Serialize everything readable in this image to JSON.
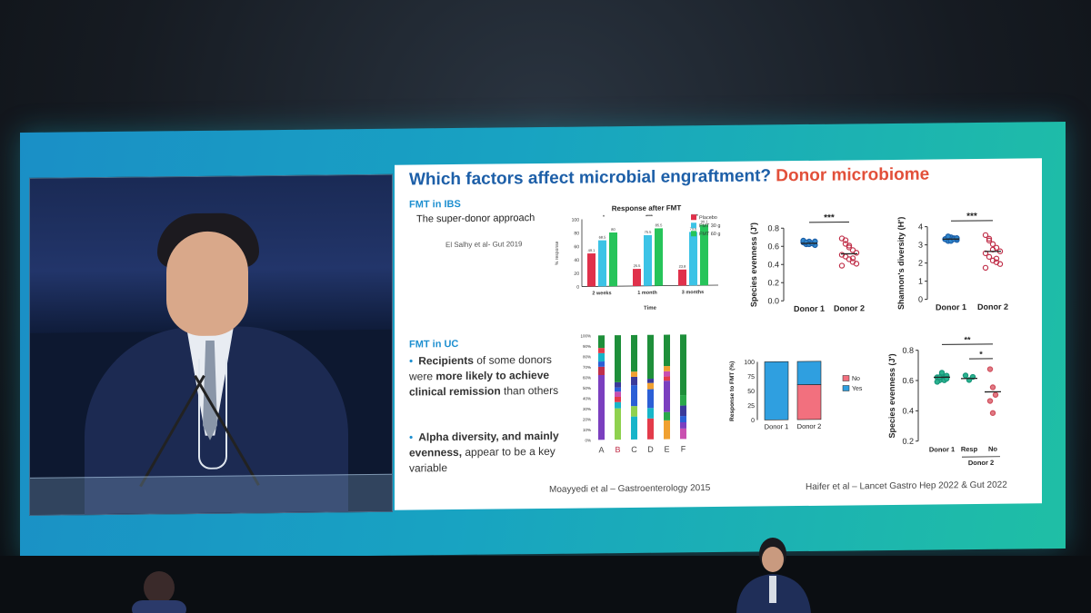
{
  "slide": {
    "title": "Which factors affect microbial engraftment?",
    "title_accent": "Donor microbiome",
    "ibs_heading": "FMT in IBS",
    "ibs_subtitle": "The super-donor approach",
    "ibs_citation": "El Salhy et al- Gut 2019",
    "uc_heading": "FMT in UC",
    "bullet1_pre": "Recipients",
    "bullet1_mid": " of some donors were ",
    "bullet1_bold": "more likely to achieve clinical remission",
    "bullet1_post": " than others",
    "bullet2_bold": "Alpha diversity, and mainly evenness,",
    "bullet2_post": " appear to be a key variable",
    "ref_left": "Moayyedi et al – Gastroenterology 2015",
    "ref_right": "Haifer et al – Lancet Gastro Hep 2022 & Gut 2022"
  },
  "chart_data": [
    {
      "type": "bar",
      "title": "Response after FMT",
      "xlabel": "Time",
      "ylabel": "% response",
      "categories": [
        "2 weeks",
        "1 month",
        "3 months"
      ],
      "ylim": [
        0,
        100
      ],
      "series": [
        {
          "name": "Placebo",
          "values": [
            49.1,
            25.5,
            23.8
          ],
          "color": "#e0314b"
        },
        {
          "name": "FMT 30 g",
          "values": [
            68.5,
            75.5,
            79.6
          ],
          "color": "#3cc3e6"
        },
        {
          "name": "FMT 60 g",
          "values": [
            80,
            85.5,
            90.1
          ],
          "color": "#27c45a"
        }
      ],
      "value_labels": [
        "49.1",
        "68.5",
        "80",
        "25.5",
        "75.5",
        "85.5",
        "23.8",
        "79.6",
        "90.1"
      ],
      "significance": [
        "*",
        "****",
        "****"
      ]
    },
    {
      "type": "scatter",
      "ylabel": "Species evenness (J')",
      "categories": [
        "Donor 1",
        "Donor 2"
      ],
      "ylim": [
        0.0,
        0.8
      ],
      "yticks": [
        "0.0",
        "0.2",
        "0.4",
        "0.6",
        "0.8"
      ],
      "significance": "***"
    },
    {
      "type": "scatter",
      "ylabel": "Shannon's diversity (H')",
      "categories": [
        "Donor 1",
        "Donor 2"
      ],
      "ylim": [
        0,
        4
      ],
      "yticks": [
        "0",
        "1",
        "2",
        "3",
        "4"
      ],
      "significance": "***"
    },
    {
      "type": "bar",
      "ylabel": "",
      "categories": [
        "A",
        "B",
        "C",
        "D",
        "E",
        "F"
      ],
      "ylim": [
        0,
        100
      ],
      "yticks": [
        "0%",
        "10%",
        "20%",
        "30%",
        "40%",
        "50%",
        "60%",
        "70%",
        "80%",
        "90%",
        "100%"
      ]
    },
    {
      "type": "bar",
      "ylabel": "Response to FMT (%)",
      "categories": [
        "Donor 1",
        "Donor 2"
      ],
      "ylim": [
        0,
        100
      ],
      "yticks": [
        "0",
        "25",
        "50",
        "75",
        "100"
      ],
      "series": [
        {
          "name": "No",
          "values": [
            0,
            60
          ],
          "color": "#f2707e"
        },
        {
          "name": "Yes",
          "values": [
            100,
            40
          ],
          "color": "#2f9fe0"
        }
      ]
    },
    {
      "type": "scatter",
      "ylabel": "Species evenness (J')",
      "categories": [
        "Donor 1",
        "Resp",
        "No"
      ],
      "group_label": "Donor 2",
      "ylim": [
        0.2,
        0.8
      ],
      "yticks": [
        "0.2",
        "0.4",
        "0.6",
        "0.8"
      ],
      "significance": [
        "**",
        "*"
      ]
    }
  ]
}
